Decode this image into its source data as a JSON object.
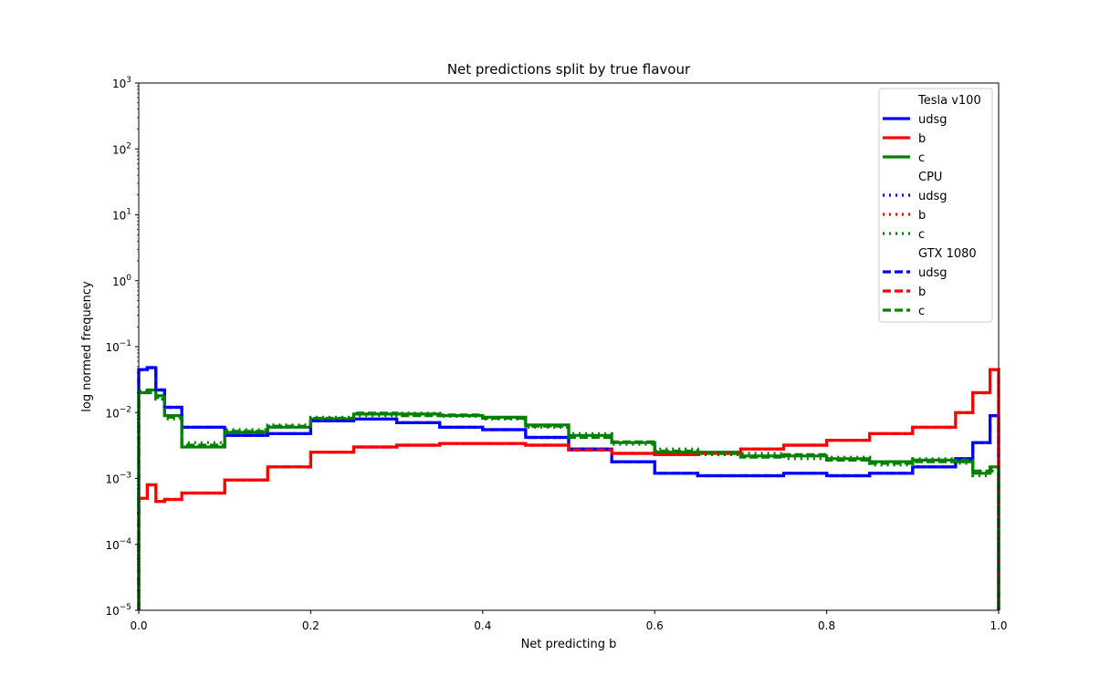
{
  "chart_data": {
    "type": "step-histogram",
    "title": "Net predictions split by true flavour",
    "xlabel": "Net predicting b",
    "ylabel": "log normed frequency",
    "xlim": [
      0.0,
      1.0
    ],
    "ylim": [
      1e-05,
      1000
    ],
    "yscale": "log",
    "grid": false,
    "legend_placement": "top-right",
    "x_ticks": [
      "0.0",
      "0.2",
      "0.4",
      "0.6",
      "0.8",
      "1.0"
    ],
    "y_ticks": [
      {
        "base": "10",
        "exp": "−5"
      },
      {
        "base": "10",
        "exp": "−4"
      },
      {
        "base": "10",
        "exp": "−3"
      },
      {
        "base": "10",
        "exp": "−2"
      },
      {
        "base": "10",
        "exp": "−1"
      },
      {
        "base": "10",
        "exp": "0"
      },
      {
        "base": "10",
        "exp": "1"
      },
      {
        "base": "10",
        "exp": "2"
      },
      {
        "base": "10",
        "exp": "3"
      }
    ],
    "colors": {
      "udsg": "#0000ff",
      "b": "#ff0000",
      "c": "#008000"
    },
    "x": [
      0.0,
      0.01,
      0.02,
      0.03,
      0.05,
      0.1,
      0.15,
      0.2,
      0.25,
      0.3,
      0.35,
      0.4,
      0.45,
      0.5,
      0.55,
      0.6,
      0.65,
      0.7,
      0.75,
      0.8,
      0.85,
      0.9,
      0.95,
      0.97,
      0.99,
      1.0
    ],
    "groups": [
      {
        "label": "Tesla v100",
        "style": "solid",
        "series": [
          {
            "name": "udsg",
            "values": [
              0.045,
              0.048,
              0.022,
              0.012,
              0.006,
              0.0045,
              0.0048,
              0.0075,
              0.008,
              0.007,
              0.006,
              0.0055,
              0.0042,
              0.0028,
              0.0018,
              0.0012,
              0.0011,
              0.0011,
              0.0012,
              0.0011,
              0.0012,
              0.0015,
              0.002,
              0.0035,
              0.009,
              0.02
            ]
          },
          {
            "name": "b",
            "values": [
              0.0005,
              0.0008,
              0.00045,
              0.00048,
              0.0006,
              0.00095,
              0.0015,
              0.0025,
              0.003,
              0.0032,
              0.0034,
              0.0034,
              0.0032,
              0.0027,
              0.0024,
              0.0023,
              0.0024,
              0.0028,
              0.0032,
              0.0038,
              0.0048,
              0.006,
              0.01,
              0.02,
              0.045,
              0.085
            ]
          },
          {
            "name": "c",
            "values": [
              0.02,
              0.022,
              0.018,
              0.009,
              0.003,
              0.005,
              0.006,
              0.008,
              0.0095,
              0.0095,
              0.009,
              0.0085,
              0.0065,
              0.0045,
              0.0035,
              0.0025,
              0.0025,
              0.0022,
              0.0022,
              0.002,
              0.0018,
              0.0019,
              0.0018,
              0.0012,
              0.0015,
              0.0014
            ]
          }
        ]
      },
      {
        "label": "CPU",
        "style": "dotted",
        "series": [
          {
            "name": "udsg",
            "values": [
              0.045,
              0.048,
              0.022,
              0.012,
              0.006,
              0.0045,
              0.0048,
              0.0075,
              0.008,
              0.007,
              0.006,
              0.0055,
              0.0042,
              0.0028,
              0.0018,
              0.0012,
              0.0011,
              0.0011,
              0.0012,
              0.0011,
              0.0012,
              0.0015,
              0.002,
              0.0035,
              0.009,
              0.02
            ]
          },
          {
            "name": "b",
            "values": [
              0.0005,
              0.0008,
              0.00045,
              0.00048,
              0.0006,
              0.00095,
              0.0015,
              0.0025,
              0.003,
              0.0032,
              0.0034,
              0.0034,
              0.0032,
              0.0027,
              0.0024,
              0.0023,
              0.0024,
              0.0028,
              0.0032,
              0.0038,
              0.0048,
              0.006,
              0.01,
              0.02,
              0.045,
              0.085
            ]
          },
          {
            "name": "c",
            "values": [
              0.02,
              0.021,
              0.016,
              0.008,
              0.0035,
              0.0055,
              0.0065,
              0.0085,
              0.009,
              0.0098,
              0.0088,
              0.008,
              0.006,
              0.0048,
              0.0033,
              0.0028,
              0.0023,
              0.0024,
              0.002,
              0.0021,
              0.0016,
              0.002,
              0.0017,
              0.0011,
              0.0014,
              0.0015
            ]
          }
        ]
      },
      {
        "label": "GTX 1080",
        "style": "dashed",
        "series": [
          {
            "name": "udsg",
            "values": [
              0.045,
              0.048,
              0.022,
              0.012,
              0.006,
              0.0045,
              0.0048,
              0.0075,
              0.008,
              0.007,
              0.006,
              0.0055,
              0.0042,
              0.0028,
              0.0018,
              0.0012,
              0.0011,
              0.0011,
              0.0012,
              0.0011,
              0.0012,
              0.0015,
              0.002,
              0.0035,
              0.009,
              0.02
            ]
          },
          {
            "name": "b",
            "values": [
              0.0005,
              0.0008,
              0.00045,
              0.00048,
              0.0006,
              0.00095,
              0.0015,
              0.0025,
              0.003,
              0.0032,
              0.0034,
              0.0034,
              0.0032,
              0.0027,
              0.0024,
              0.0023,
              0.0024,
              0.0028,
              0.0032,
              0.0038,
              0.0048,
              0.006,
              0.01,
              0.02,
              0.045,
              0.085
            ]
          },
          {
            "name": "c",
            "values": [
              0.021,
              0.02,
              0.017,
              0.0085,
              0.0032,
              0.0052,
              0.0062,
              0.0082,
              0.0098,
              0.009,
              0.0092,
              0.0082,
              0.0062,
              0.0042,
              0.0036,
              0.0026,
              0.0024,
              0.0021,
              0.0023,
              0.0019,
              0.0017,
              0.0018,
              0.0019,
              0.0013,
              0.0013,
              0.0016
            ]
          }
        ]
      }
    ]
  }
}
